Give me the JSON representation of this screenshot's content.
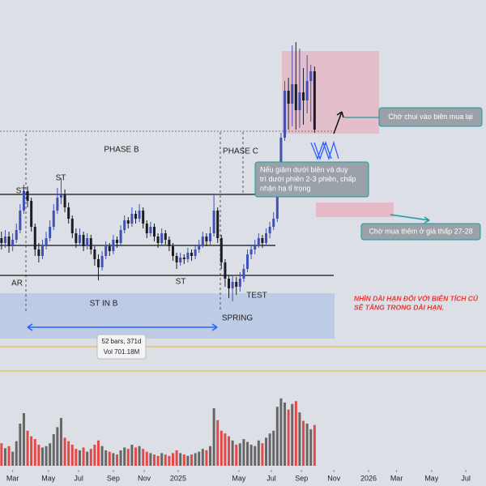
{
  "chart_data": {
    "type": "candlestick",
    "xticks": [
      {
        "value": 3,
        "label": "Mar"
      },
      {
        "value": 12.6,
        "label": "May"
      },
      {
        "value": 20.7,
        "label": "Jul"
      },
      {
        "value": 30,
        "label": "Sep"
      },
      {
        "value": 38.3,
        "label": "Nov"
      },
      {
        "value": 47.4,
        "label": "2025"
      },
      {
        "value": 63.7,
        "label": "May"
      },
      {
        "value": 72.4,
        "label": "Jul"
      },
      {
        "value": 80.5,
        "label": "Sep"
      },
      {
        "value": 89.2,
        "label": "Nov"
      },
      {
        "value": 98.5,
        "label": "2026"
      },
      {
        "value": 106,
        "label": "Mar"
      },
      {
        "value": 115.4,
        "label": "May"
      },
      {
        "value": 124.6,
        "label": "Jul"
      }
    ],
    "xlim": [
      -0.4,
      130
    ],
    "ylim": [
      10,
      40
    ],
    "volume_ylim": [
      0,
      12
    ],
    "colors": {
      "up": "#3f51b5",
      "down": "#1c1c24",
      "volume_up": "#5a5a5a",
      "volume_down": "#e53935"
    },
    "open": [
      25.3,
      25.0,
      25.4,
      24.8,
      25.2,
      25.8,
      27.0,
      28.2,
      27.6,
      26.0,
      24.6,
      24.2,
      24.8,
      25.3,
      26.0,
      27.0,
      27.8,
      28.0,
      27.2,
      26.5,
      25.6,
      25.0,
      25.5,
      24.8,
      25.3,
      24.6,
      24.0,
      23.5,
      24.2,
      24.8,
      24.5,
      25.2,
      25.0,
      25.8,
      26.4,
      26.2,
      26.8,
      26.5,
      27.0,
      26.2,
      25.6,
      26.0,
      25.4,
      25.0,
      25.6,
      25.2,
      24.8,
      24.2,
      23.8,
      24.1,
      24.0,
      24.4,
      24.2,
      24.6,
      24.9,
      25.4,
      25.1,
      25.6,
      27.0,
      25.3,
      23.8,
      22.8,
      22.2,
      22.6,
      22.3,
      22.8,
      23.4,
      24.3,
      24.6,
      24.9,
      25.3,
      25.0,
      25.6,
      26.0,
      26.5,
      28.5,
      31.5,
      34.4,
      33.6,
      34.8,
      33.2,
      34.3,
      33.8,
      35.0,
      35.6
    ],
    "high": [
      25.7,
      25.8,
      25.7,
      25.6,
      26.2,
      27.4,
      28.6,
      28.5,
      27.8,
      26.2,
      25.0,
      25.2,
      25.7,
      26.4,
      27.4,
      28.4,
      29.0,
      28.3,
      27.5,
      26.7,
      25.9,
      25.9,
      25.7,
      25.6,
      25.5,
      24.8,
      24.3,
      24.5,
      25.1,
      25.0,
      25.5,
      25.4,
      26.1,
      26.7,
      26.6,
      27.2,
      27.0,
      27.4,
      27.2,
      26.4,
      26.3,
      26.2,
      25.6,
      25.9,
      25.8,
      25.4,
      25.0,
      24.4,
      24.4,
      24.3,
      24.7,
      24.6,
      24.9,
      25.2,
      25.7,
      25.6,
      26.0,
      28.0,
      27.2,
      25.5,
      24.0,
      23.0,
      23.0,
      22.9,
      23.2,
      23.7,
      24.6,
      24.9,
      25.2,
      25.6,
      25.5,
      25.9,
      26.3,
      26.9,
      28.8,
      31.8,
      35.0,
      35.2,
      37.2,
      37.4,
      37.0,
      35.8,
      36.6,
      36.0,
      35.9
    ],
    "low": [
      24.6,
      24.7,
      24.4,
      24.5,
      25.0,
      25.6,
      26.8,
      27.2,
      25.7,
      24.2,
      23.8,
      24.0,
      24.6,
      25.1,
      25.8,
      26.8,
      27.4,
      26.9,
      26.2,
      25.3,
      24.7,
      24.8,
      24.5,
      24.6,
      24.3,
      23.6,
      22.7,
      23.3,
      24.0,
      24.2,
      24.3,
      24.7,
      24.8,
      25.6,
      25.9,
      26.0,
      26.2,
      26.3,
      25.9,
      25.3,
      25.4,
      25.1,
      24.7,
      24.8,
      24.9,
      24.5,
      23.9,
      23.4,
      23.6,
      23.7,
      23.8,
      23.9,
      24.0,
      24.4,
      24.7,
      24.8,
      24.9,
      25.4,
      25.0,
      23.4,
      22.3,
      21.6,
      21.4,
      21.8,
      22.0,
      22.6,
      23.2,
      24.0,
      24.3,
      24.7,
      24.7,
      24.8,
      25.3,
      25.8,
      26.3,
      28.3,
      31.3,
      32.0,
      32.2,
      32.0,
      32.1,
      32.3,
      33.0,
      32.5,
      31.8
    ],
    "close": [
      25.0,
      25.4,
      24.8,
      25.2,
      25.8,
      27.0,
      28.2,
      27.6,
      26.0,
      24.6,
      24.2,
      24.8,
      25.3,
      26.0,
      27.0,
      27.8,
      28.0,
      27.2,
      26.5,
      25.6,
      25.0,
      25.5,
      24.8,
      25.3,
      24.6,
      24.0,
      23.5,
      24.2,
      24.8,
      24.5,
      25.2,
      25.0,
      25.8,
      26.4,
      26.2,
      26.8,
      26.5,
      27.0,
      26.2,
      25.6,
      26.0,
      25.4,
      25.0,
      25.6,
      25.2,
      24.8,
      24.2,
      23.8,
      24.1,
      24.0,
      24.4,
      24.2,
      24.6,
      24.9,
      25.4,
      25.1,
      25.6,
      27.0,
      25.3,
      23.8,
      22.8,
      22.2,
      22.6,
      22.3,
      22.8,
      23.4,
      24.3,
      24.6,
      24.9,
      25.3,
      25.0,
      25.6,
      26.0,
      26.5,
      28.5,
      31.5,
      34.4,
      33.6,
      34.8,
      33.2,
      34.3,
      33.8,
      35.0,
      35.6,
      32.0
    ],
    "volume": [
      3.2,
      2.5,
      2.8,
      2.0,
      3.5,
      6.0,
      7.5,
      5.0,
      4.2,
      3.8,
      3.0,
      2.6,
      2.8,
      3.2,
      4.5,
      5.5,
      6.8,
      4.0,
      3.5,
      3.0,
      2.4,
      2.2,
      2.6,
      2.0,
      2.4,
      3.0,
      3.6,
      2.8,
      2.2,
      2.0,
      1.8,
      1.6,
      2.2,
      2.6,
      2.4,
      3.0,
      2.6,
      2.8,
      2.4,
      2.0,
      1.8,
      1.6,
      1.4,
      1.8,
      1.6,
      1.4,
      1.8,
      2.2,
      1.8,
      1.6,
      1.4,
      1.6,
      1.8,
      2.0,
      2.4,
      2.2,
      2.8,
      8.2,
      6.5,
      5.0,
      4.6,
      4.2,
      3.6,
      3.0,
      3.2,
      3.8,
      3.4,
      3.0,
      2.8,
      3.6,
      3.2,
      4.0,
      4.6,
      5.0,
      8.4,
      9.6,
      9.0,
      8.0,
      8.8,
      9.2,
      7.6,
      6.4,
      6.0,
      5.2,
      5.8
    ],
    "levels": [
      28.0,
      24.85,
      23.0
    ],
    "annotations": [
      "PHASE B",
      "PHASE C",
      "ST",
      "ST",
      "AR",
      "ST",
      "ST IN B",
      "SPRING",
      "TEST"
    ],
    "info_box": [
      "52 bars, 371d",
      "Vol 701.18M"
    ],
    "callouts": [
      [
        "Chờ chui vào biên mua lại"
      ],
      [
        "Nếu giảm dưới biên và duy",
        "trì dưới phiên 2-3 phiên, chấp",
        "nhận hạ tỉ trọng"
      ],
      [
        "Chờ mua thêm ở giá thấp 27-28"
      ]
    ],
    "note": [
      "NHÌN DÀI HẠN ĐỐI VỚI BIÊN TÍCH CỦ",
      "SẼ TĂNG TRONG DÀI HẠN."
    ]
  }
}
